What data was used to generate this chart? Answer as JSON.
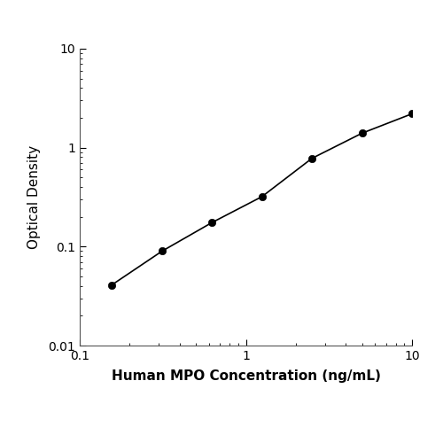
{
  "x_data": [
    0.156,
    0.313,
    0.625,
    1.25,
    2.5,
    5.0,
    10.0
  ],
  "y_data": [
    0.041,
    0.09,
    0.175,
    0.32,
    0.78,
    1.4,
    2.2
  ],
  "xlabel": "Human MPO Concentration (ng/mL)",
  "ylabel": "Optical Density",
  "xlim": [
    0.1,
    10
  ],
  "ylim": [
    0.01,
    10
  ],
  "line_color": "#000000",
  "marker_color": "#000000",
  "marker_size": 6,
  "line_width": 1.2,
  "background_color": "#ffffff",
  "xlabel_fontsize": 11,
  "ylabel_fontsize": 11,
  "tick_fontsize": 10,
  "bottom_bar_color": "#000000"
}
